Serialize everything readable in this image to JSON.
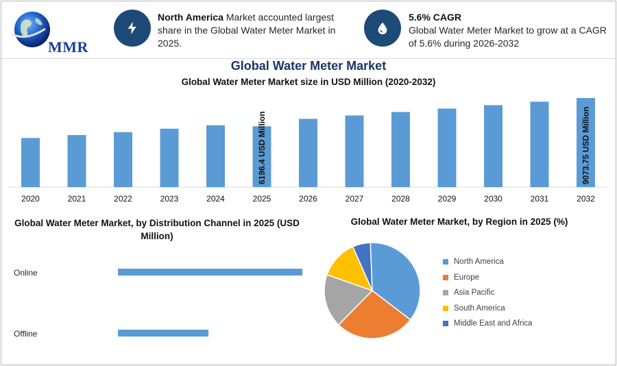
{
  "brand": {
    "logo_text": "MMR"
  },
  "highlights": [
    {
      "icon": "lightning-icon",
      "bold": "North America",
      "text": " Market accounted largest share in the Global Water Meter Market in 2025."
    },
    {
      "icon": "drop-icon",
      "bold": "5.6% CAGR",
      "text": "Global Water Meter Market to grow at a CAGR of 5.6% during 2026-2032"
    }
  ],
  "main_title": "Global Water Meter Market",
  "chart_data": [
    {
      "type": "bar",
      "title": "Global Water Meter Market size in USD Million (2020-2032)",
      "categories": [
        "2020",
        "2021",
        "2022",
        "2023",
        "2024",
        "2025",
        "2026",
        "2027",
        "2028",
        "2029",
        "2030",
        "2031",
        "2032"
      ],
      "values": [
        5000,
        5300,
        5600,
        5950,
        6300,
        6196.4,
        6950,
        7300,
        7650,
        8000,
        8350,
        8700,
        9073.75
      ],
      "data_labels": {
        "2025": "6196.4 USD Million",
        "2032": "9073.75 USD Million"
      },
      "color": "#5b9bd5",
      "ylim": [
        0,
        9073.75
      ],
      "xlabel": "",
      "ylabel": ""
    },
    {
      "type": "bar",
      "orientation": "horizontal",
      "title": "Global Water Meter Market, by Distribution Channel in 2025 (USD Million)",
      "categories": [
        "Online",
        "Offline"
      ],
      "values": [
        100,
        49
      ],
      "color": "#5b9bd5"
    },
    {
      "type": "pie",
      "title": "Global Water Meter Market, by Region in 2025 (%)",
      "labels": [
        "North America",
        "Europe",
        "Asia Pacific",
        "South America",
        "Middle East and Africa"
      ],
      "values": [
        36,
        27,
        18,
        13,
        6
      ],
      "colors": [
        "#5b9bd5",
        "#ed7d31",
        "#a5a5a5",
        "#ffc000",
        "#4472c4"
      ],
      "legend_position": "right"
    }
  ]
}
